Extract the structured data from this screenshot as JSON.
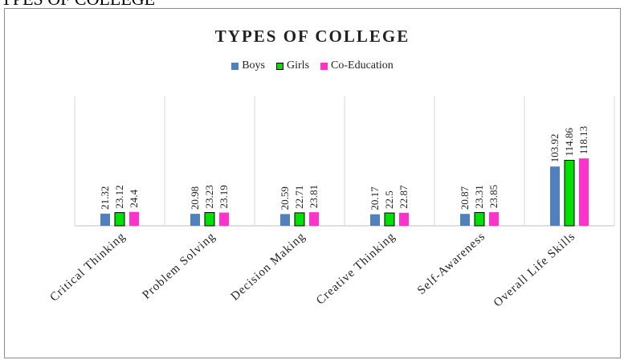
{
  "page": {
    "heading": "YPES OF COLLEGE"
  },
  "chart_data": {
    "type": "bar",
    "title": "TYPES OF COLLEGE",
    "categories": [
      "Critical Thinking",
      "Problem Solving",
      "Decision Making",
      "Creative Thinking",
      "Self-Awareness",
      "Overall Life Skills"
    ],
    "series": [
      {
        "name": "Boys",
        "color": "#4f81bd",
        "values": [
          21.32,
          20.98,
          20.59,
          20.17,
          20.87,
          103.92
        ]
      },
      {
        "name": "Girls",
        "color": "#00e000",
        "values": [
          23.12,
          23.23,
          22.71,
          22.5,
          23.31,
          114.86
        ]
      },
      {
        "name": "Co-Education",
        "color": "#ff33cc",
        "values": [
          24.4,
          23.19,
          23.81,
          22.87,
          23.85,
          118.13
        ]
      }
    ],
    "ylim": [
      0,
      140
    ],
    "legend_position": "top-center",
    "grid": "vertical"
  }
}
